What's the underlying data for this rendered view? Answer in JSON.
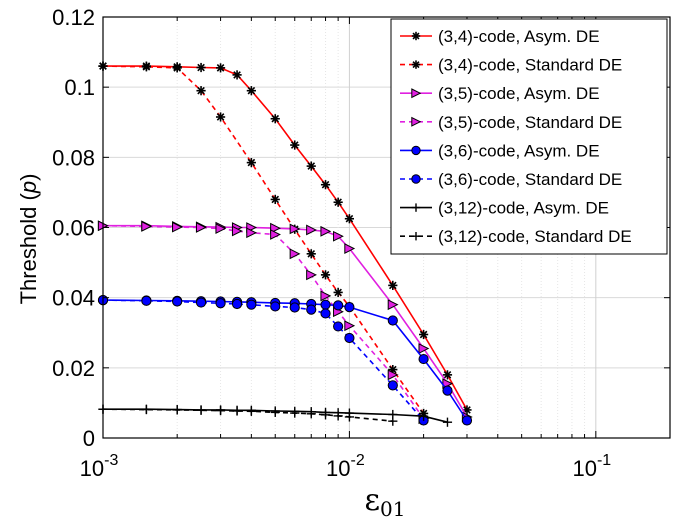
{
  "chart_data": {
    "type": "line",
    "xscale": "log",
    "xlim": [
      0.001,
      0.2
    ],
    "ylim": [
      0,
      0.12
    ],
    "grid": true,
    "xlabel": "ε01",
    "ylabel": "Threshold (p)",
    "x_ticks": [
      {
        "value": 0.001,
        "base": "10",
        "exp": "-3"
      },
      {
        "value": 0.01,
        "base": "10",
        "exp": "-2"
      },
      {
        "value": 0.1,
        "base": "10",
        "exp": "-1"
      }
    ],
    "y_ticks": [
      {
        "value": 0,
        "label": "0"
      },
      {
        "value": 0.02,
        "label": "0.02"
      },
      {
        "value": 0.04,
        "label": "0.04"
      },
      {
        "value": 0.06,
        "label": "0.06"
      },
      {
        "value": 0.08,
        "label": "0.08"
      },
      {
        "value": 0.1,
        "label": "0.1"
      },
      {
        "value": 0.12,
        "label": "0.12"
      }
    ],
    "legend_position": "top-right",
    "series": [
      {
        "name": "(3,4)-code, Asym. DE",
        "color": "#ff0000",
        "dash": "solid",
        "marker": "asterisk",
        "x": [
          0.001,
          0.0015,
          0.002,
          0.0025,
          0.003,
          0.0035,
          0.004,
          0.005,
          0.006,
          0.007,
          0.008,
          0.009,
          0.01,
          0.015,
          0.02,
          0.025,
          0.03
        ],
        "y": [
          0.106,
          0.106,
          0.1058,
          0.1056,
          0.1055,
          0.1035,
          0.099,
          0.091,
          0.0835,
          0.0775,
          0.0722,
          0.0672,
          0.0625,
          0.0435,
          0.0295,
          0.018,
          0.008
        ]
      },
      {
        "name": "(3,4)-code, Standard DE",
        "color": "#ff0000",
        "dash": "dashed",
        "marker": "asterisk",
        "x": [
          0.001,
          0.0015,
          0.002,
          0.0025,
          0.003,
          0.004,
          0.005,
          0.006,
          0.007,
          0.008,
          0.009,
          0.01,
          0.015,
          0.02
        ],
        "y": [
          0.106,
          0.1058,
          0.1055,
          0.099,
          0.0915,
          0.0785,
          0.068,
          0.0595,
          0.0525,
          0.0465,
          0.0415,
          0.0375,
          0.0195,
          0.007
        ]
      },
      {
        "name": "(3,5)-code, Asym. DE",
        "color": "#e020e0",
        "dash": "solid",
        "marker": "triangle-right",
        "x": [
          0.001,
          0.0015,
          0.002,
          0.0025,
          0.003,
          0.0035,
          0.004,
          0.005,
          0.006,
          0.007,
          0.008,
          0.009,
          0.01,
          0.015,
          0.02,
          0.025,
          0.03
        ],
        "y": [
          0.0605,
          0.0605,
          0.0603,
          0.0602,
          0.0601,
          0.06,
          0.06,
          0.0598,
          0.0596,
          0.0593,
          0.0589,
          0.0575,
          0.054,
          0.038,
          0.0255,
          0.0155,
          0.006
        ]
      },
      {
        "name": "(3,5)-code, Standard DE",
        "color": "#e020e0",
        "dash": "dashed",
        "marker": "triangle-right",
        "x": [
          0.001,
          0.0015,
          0.002,
          0.0025,
          0.003,
          0.0035,
          0.004,
          0.005,
          0.006,
          0.007,
          0.008,
          0.009,
          0.01,
          0.015,
          0.02
        ],
        "y": [
          0.0605,
          0.0603,
          0.0601,
          0.06,
          0.0597,
          0.059,
          0.0585,
          0.058,
          0.0525,
          0.0465,
          0.0405,
          0.036,
          0.032,
          0.018,
          0.0055
        ]
      },
      {
        "name": "(3,6)-code, Asym. DE",
        "color": "#0000ff",
        "dash": "solid",
        "marker": "circle",
        "x": [
          0.001,
          0.0015,
          0.002,
          0.0025,
          0.003,
          0.0035,
          0.004,
          0.005,
          0.006,
          0.007,
          0.008,
          0.009,
          0.01,
          0.015,
          0.02,
          0.025,
          0.03
        ],
        "y": [
          0.0393,
          0.0392,
          0.0391,
          0.039,
          0.0389,
          0.0388,
          0.0387,
          0.0385,
          0.0384,
          0.0382,
          0.038,
          0.0378,
          0.0373,
          0.0335,
          0.0225,
          0.0135,
          0.005
        ]
      },
      {
        "name": "(3,6)-code, Standard DE",
        "color": "#0000ff",
        "dash": "dashed",
        "marker": "circle",
        "x": [
          0.001,
          0.0015,
          0.002,
          0.0025,
          0.003,
          0.0035,
          0.004,
          0.005,
          0.006,
          0.007,
          0.008,
          0.009,
          0.01,
          0.015,
          0.02
        ],
        "y": [
          0.0393,
          0.0391,
          0.0389,
          0.0386,
          0.0384,
          0.0382,
          0.038,
          0.0375,
          0.0372,
          0.0366,
          0.0355,
          0.0318,
          0.0285,
          0.015,
          0.005
        ]
      },
      {
        "name": "(3,12)-code, Asym. DE",
        "color": "#000000",
        "dash": "solid",
        "marker": "plus",
        "x": [
          0.001,
          0.0015,
          0.002,
          0.0025,
          0.003,
          0.0035,
          0.004,
          0.005,
          0.006,
          0.007,
          0.008,
          0.009,
          0.01,
          0.015,
          0.02,
          0.025
        ],
        "y": [
          0.0082,
          0.0082,
          0.0081,
          0.008,
          0.008,
          0.0079,
          0.0079,
          0.0077,
          0.0076,
          0.0075,
          0.0073,
          0.0072,
          0.0071,
          0.0067,
          0.0062,
          0.0045
        ]
      },
      {
        "name": "(3,12)-code, Standard DE",
        "color": "#000000",
        "dash": "dashed",
        "marker": "plus",
        "x": [
          0.001,
          0.0015,
          0.002,
          0.0025,
          0.003,
          0.0035,
          0.004,
          0.005,
          0.006,
          0.007,
          0.008,
          0.009,
          0.01,
          0.015
        ],
        "y": [
          0.0082,
          0.0081,
          0.008,
          0.0079,
          0.0078,
          0.0077,
          0.0076,
          0.0073,
          0.0071,
          0.0069,
          0.0066,
          0.0063,
          0.006,
          0.0048
        ]
      }
    ]
  }
}
